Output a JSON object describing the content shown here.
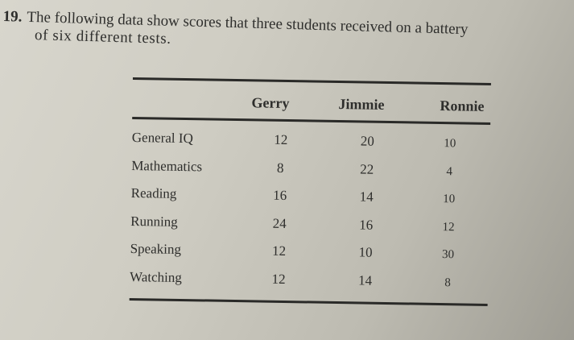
{
  "problem": {
    "number": "19.",
    "line1": "The following data show scores that three students received on a battery",
    "line2": "of six different tests."
  },
  "table": {
    "columns": [
      "Gerry",
      "Jimmie",
      "Ronnie"
    ],
    "rows": [
      {
        "label": "General IQ",
        "values": [
          "12",
          "20",
          "10"
        ]
      },
      {
        "label": "Mathematics",
        "values": [
          "8",
          "22",
          "4"
        ]
      },
      {
        "label": "Reading",
        "values": [
          "16",
          "14",
          "10"
        ]
      },
      {
        "label": "Running",
        "values": [
          "24",
          "16",
          "12"
        ]
      },
      {
        "label": "Speaking",
        "values": [
          "12",
          "10",
          "30"
        ]
      },
      {
        "label": "Watching",
        "values": [
          "12",
          "14",
          "8"
        ]
      }
    ]
  }
}
